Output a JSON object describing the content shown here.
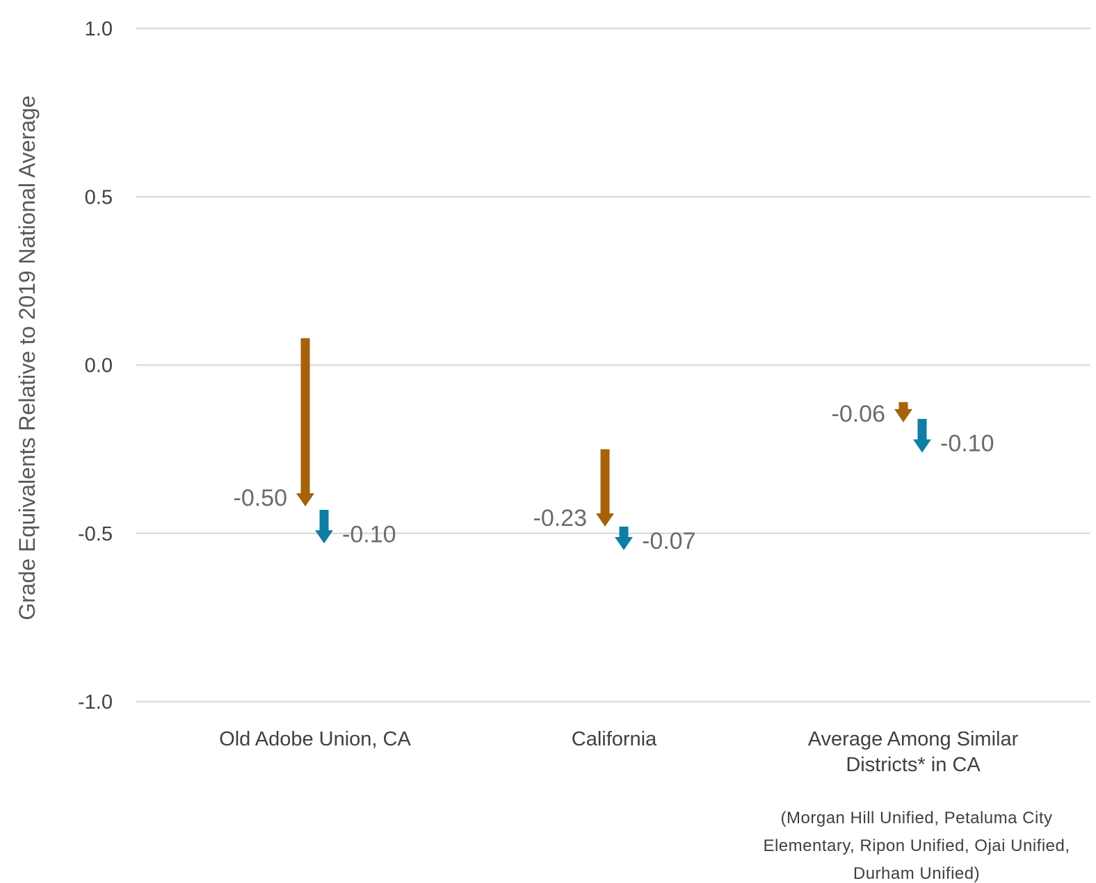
{
  "chart_data": {
    "type": "arrow",
    "ylabel": "Grade Equivalents Relative to 2019 National Average",
    "ylim": [
      -1.0,
      1.0
    ],
    "yticks": [
      {
        "value": 1.0,
        "label": "1.0"
      },
      {
        "value": 0.5,
        "label": "0.5"
      },
      {
        "value": 0.0,
        "label": "0.0"
      },
      {
        "value": -0.5,
        "label": "-0.5"
      },
      {
        "value": -1.0,
        "label": "-1.0"
      }
    ],
    "grid": true,
    "categories": [
      {
        "lines": [
          "Old Adobe Union, CA"
        ]
      },
      {
        "lines": [
          "California"
        ]
      },
      {
        "lines": [
          "Average Among Similar",
          "Districts* in CA"
        ]
      }
    ],
    "note_lines": [
      "(Morgan Hill Unified, Petaluma City",
      "Elementary, Ripon Unified, Ojai Unified,",
      "Durham Unified)"
    ],
    "series": [
      {
        "color": "#a5620a",
        "label_side": "left",
        "arrows": [
          {
            "start": 0.08,
            "end": -0.42,
            "change": "-0.50"
          },
          {
            "start": -0.25,
            "end": -0.48,
            "change": "-0.23"
          },
          {
            "start": -0.11,
            "end": -0.17,
            "change": "-0.06"
          }
        ]
      },
      {
        "color": "#0e7ea5",
        "label_side": "right",
        "arrows": [
          {
            "start": -0.43,
            "end": -0.53,
            "change": "-0.10"
          },
          {
            "start": -0.48,
            "end": -0.55,
            "change": "-0.07"
          },
          {
            "start": -0.16,
            "end": -0.26,
            "change": "-0.10"
          }
        ]
      }
    ]
  }
}
